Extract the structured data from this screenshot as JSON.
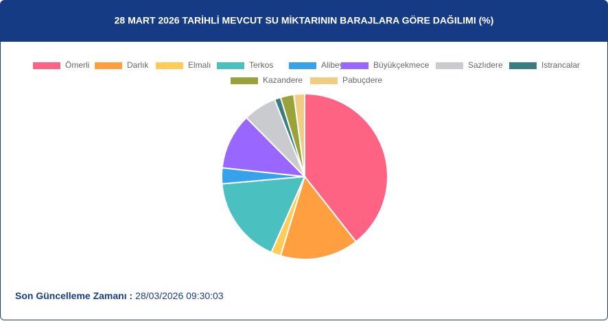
{
  "chart_data": {
    "type": "pie",
    "title": "28 MART 2026 TARİHLİ MEVCUT SU MİKTARININ BARAJLARA GÖRE DAĞILIMI (%)",
    "categories": [
      "Ömerli",
      "Darlık",
      "Elmalı",
      "Terkos",
      "Alibey",
      "Büyükçekmece",
      "Sazlıdere",
      "Istrancalar",
      "Kazandere",
      "Pabuçdere"
    ],
    "values": [
      39.4,
      15.3,
      1.9,
      17.0,
      3.1,
      10.9,
      6.5,
      1.2,
      2.6,
      2.1
    ],
    "colors": [
      "#ff6384",
      "#ff9f40",
      "#ffcd56",
      "#4bc0c0",
      "#36a2eb",
      "#9966ff",
      "#c9cbcf",
      "#3a7d80",
      "#9aa23a",
      "#f0cd82"
    ],
    "footer_label": "Son Güncelleme Zamanı :",
    "footer_value": "28/03/2026 09:30:03"
  }
}
